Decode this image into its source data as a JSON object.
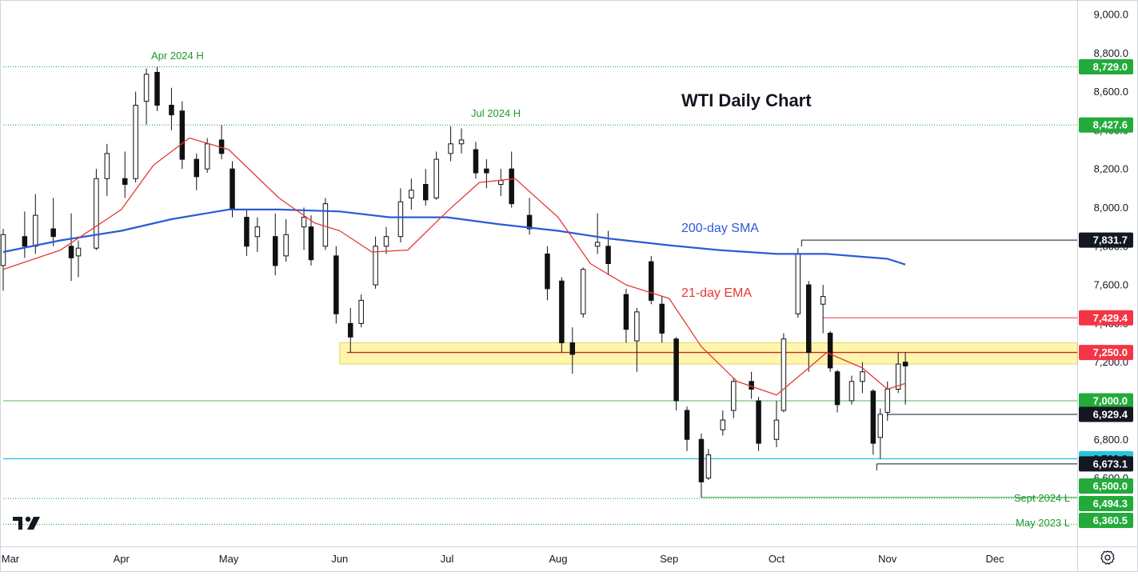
{
  "chart_data": {
    "type": "candlestick",
    "title": "WTI Daily Chart",
    "y_axis": {
      "range": [
        6250,
        9050
      ],
      "ticks": [
        "9,000.0",
        "8,800.0",
        "8,600.0",
        "8,400.0",
        "8,200.0",
        "8,000.0",
        "7,800.0",
        "7,600.0",
        "7,400.0",
        "7,200.0",
        "7,000.0",
        "6,800.0",
        "6,600.0",
        "6,400.0"
      ],
      "tick_values": [
        9000,
        8800,
        8600,
        8400,
        8200,
        8000,
        7800,
        7600,
        7400,
        7200,
        7000,
        6800,
        6600,
        6400
      ]
    },
    "x_axis": {
      "range": [
        "2024-02-28",
        "2024-12-24"
      ],
      "labels": [
        "Mar",
        "Apr",
        "May",
        "Jun",
        "Jul",
        "Aug",
        "Sep",
        "Oct",
        "Nov",
        "Dec"
      ],
      "label_dates": [
        "2024-03-01",
        "2024-04-01",
        "2024-05-01",
        "2024-06-01",
        "2024-07-01",
        "2024-08-01",
        "2024-09-01",
        "2024-10-01",
        "2024-11-01",
        "2024-12-01"
      ]
    },
    "series": [
      {
        "name": "200-day SMA",
        "color": "#2a5bd7",
        "x": [
          "2024-02-28",
          "2024-03-15",
          "2024-04-01",
          "2024-04-15",
          "2024-05-01",
          "2024-05-15",
          "2024-06-01",
          "2024-06-15",
          "2024-07-01",
          "2024-07-15",
          "2024-08-01",
          "2024-08-15",
          "2024-09-01",
          "2024-09-15",
          "2024-10-01",
          "2024-10-15",
          "2024-11-01",
          "2024-11-06"
        ],
        "y": [
          7770,
          7830,
          7880,
          7940,
          7990,
          7990,
          7980,
          7950,
          7950,
          7915,
          7880,
          7840,
          7805,
          7780,
          7760,
          7760,
          7735,
          7705
        ]
      },
      {
        "name": "21-day EMA",
        "color": "#e53935",
        "x": [
          "2024-02-28",
          "2024-03-15",
          "2024-04-01",
          "2024-04-10",
          "2024-04-20",
          "2024-05-01",
          "2024-05-15",
          "2024-05-25",
          "2024-06-01",
          "2024-06-10",
          "2024-06-20",
          "2024-07-01",
          "2024-07-10",
          "2024-07-20",
          "2024-08-01",
          "2024-08-10",
          "2024-08-20",
          "2024-09-01",
          "2024-09-10",
          "2024-09-20",
          "2024-10-01",
          "2024-10-10",
          "2024-10-15",
          "2024-10-25",
          "2024-11-01",
          "2024-11-06"
        ],
        "y": [
          7680,
          7780,
          7990,
          8220,
          8360,
          8300,
          8050,
          7920,
          7880,
          7770,
          7780,
          7980,
          8130,
          8150,
          7950,
          7710,
          7600,
          7530,
          7280,
          7100,
          7030,
          7170,
          7250,
          7170,
          7060,
          7090
        ]
      }
    ],
    "candles": [
      {
        "date": "2024-02-28",
        "open": 7700,
        "high": 7890,
        "low": 7570,
        "close": 7860
      },
      {
        "date": "2024-03-05",
        "open": 7850,
        "high": 7980,
        "low": 7740,
        "close": 7800
      },
      {
        "date": "2024-03-08",
        "open": 7800,
        "high": 8070,
        "low": 7760,
        "close": 7960
      },
      {
        "date": "2024-03-13",
        "open": 7890,
        "high": 8050,
        "low": 7800,
        "close": 7850
      },
      {
        "date": "2024-03-18",
        "open": 7800,
        "high": 7970,
        "low": 7620,
        "close": 7740
      },
      {
        "date": "2024-03-20",
        "open": 7750,
        "high": 7830,
        "low": 7640,
        "close": 7790
      },
      {
        "date": "2024-03-25",
        "open": 7790,
        "high": 8200,
        "low": 7780,
        "close": 8150
      },
      {
        "date": "2024-03-28",
        "open": 8150,
        "high": 8330,
        "low": 8060,
        "close": 8280
      },
      {
        "date": "2024-04-02",
        "open": 8150,
        "high": 8290,
        "low": 8050,
        "close": 8120
      },
      {
        "date": "2024-04-05",
        "open": 8150,
        "high": 8600,
        "low": 8130,
        "close": 8530
      },
      {
        "date": "2024-04-08",
        "open": 8550,
        "high": 8720,
        "low": 8430,
        "close": 8690
      },
      {
        "date": "2024-04-11",
        "open": 8700,
        "high": 8729,
        "low": 8500,
        "close": 8530
      },
      {
        "date": "2024-04-15",
        "open": 8530,
        "high": 8620,
        "low": 8400,
        "close": 8480
      },
      {
        "date": "2024-04-18",
        "open": 8500,
        "high": 8550,
        "low": 8200,
        "close": 8250
      },
      {
        "date": "2024-04-22",
        "open": 8250,
        "high": 8280,
        "low": 8090,
        "close": 8160
      },
      {
        "date": "2024-04-25",
        "open": 8200,
        "high": 8360,
        "low": 8180,
        "close": 8330
      },
      {
        "date": "2024-04-29",
        "open": 8350,
        "high": 8427,
        "low": 8250,
        "close": 8280
      },
      {
        "date": "2024-05-02",
        "open": 8200,
        "high": 8240,
        "low": 7950,
        "close": 7990
      },
      {
        "date": "2024-05-06",
        "open": 7950,
        "high": 7990,
        "low": 7750,
        "close": 7800
      },
      {
        "date": "2024-05-09",
        "open": 7850,
        "high": 7950,
        "low": 7770,
        "close": 7900
      },
      {
        "date": "2024-05-14",
        "open": 7850,
        "high": 7970,
        "low": 7650,
        "close": 7700
      },
      {
        "date": "2024-05-17",
        "open": 7750,
        "high": 7940,
        "low": 7720,
        "close": 7860
      },
      {
        "date": "2024-05-22",
        "open": 7900,
        "high": 8000,
        "low": 7780,
        "close": 7950
      },
      {
        "date": "2024-05-24",
        "open": 7900,
        "high": 7960,
        "low": 7700,
        "close": 7730
      },
      {
        "date": "2024-05-28",
        "open": 7800,
        "high": 8050,
        "low": 7780,
        "close": 8020
      },
      {
        "date": "2024-05-31",
        "open": 7750,
        "high": 7800,
        "low": 7400,
        "close": 7450
      },
      {
        "date": "2024-06-04",
        "open": 7400,
        "high": 7480,
        "low": 7250,
        "close": 7330
      },
      {
        "date": "2024-06-07",
        "open": 7400,
        "high": 7550,
        "low": 7380,
        "close": 7520
      },
      {
        "date": "2024-06-11",
        "open": 7600,
        "high": 7850,
        "low": 7580,
        "close": 7800
      },
      {
        "date": "2024-06-14",
        "open": 7800,
        "high": 7900,
        "low": 7760,
        "close": 7850
      },
      {
        "date": "2024-06-18",
        "open": 7850,
        "high": 8100,
        "low": 7820,
        "close": 8030
      },
      {
        "date": "2024-06-21",
        "open": 8050,
        "high": 8150,
        "low": 7990,
        "close": 8090
      },
      {
        "date": "2024-06-25",
        "open": 8120,
        "high": 8200,
        "low": 8010,
        "close": 8040
      },
      {
        "date": "2024-06-28",
        "open": 8050,
        "high": 8290,
        "low": 8040,
        "close": 8250
      },
      {
        "date": "2024-07-02",
        "open": 8280,
        "high": 8420,
        "low": 8240,
        "close": 8330
      },
      {
        "date": "2024-07-05",
        "open": 8330,
        "high": 8410,
        "low": 8280,
        "close": 8350
      },
      {
        "date": "2024-07-09",
        "open": 8300,
        "high": 8340,
        "low": 8150,
        "close": 8180
      },
      {
        "date": "2024-07-12",
        "open": 8200,
        "high": 8250,
        "low": 8100,
        "close": 8180
      },
      {
        "date": "2024-07-16",
        "open": 8120,
        "high": 8200,
        "low": 8060,
        "close": 8140
      },
      {
        "date": "2024-07-19",
        "open": 8200,
        "high": 8290,
        "low": 8000,
        "close": 8020
      },
      {
        "date": "2024-07-24",
        "open": 7960,
        "high": 8050,
        "low": 7860,
        "close": 7890
      },
      {
        "date": "2024-07-29",
        "open": 7760,
        "high": 7800,
        "low": 7520,
        "close": 7580
      },
      {
        "date": "2024-08-02",
        "open": 7620,
        "high": 7640,
        "low": 7250,
        "close": 7300
      },
      {
        "date": "2024-08-05",
        "open": 7300,
        "high": 7380,
        "low": 7140,
        "close": 7240
      },
      {
        "date": "2024-08-08",
        "open": 7450,
        "high": 7690,
        "low": 7430,
        "close": 7680
      },
      {
        "date": "2024-08-12",
        "open": 7800,
        "high": 7970,
        "low": 7760,
        "close": 7820
      },
      {
        "date": "2024-08-15",
        "open": 7800,
        "high": 7880,
        "low": 7650,
        "close": 7710
      },
      {
        "date": "2024-08-20",
        "open": 7550,
        "high": 7580,
        "low": 7300,
        "close": 7370
      },
      {
        "date": "2024-08-23",
        "open": 7310,
        "high": 7480,
        "low": 7150,
        "close": 7460
      },
      {
        "date": "2024-08-27",
        "open": 7720,
        "high": 7750,
        "low": 7500,
        "close": 7520
      },
      {
        "date": "2024-08-30",
        "open": 7500,
        "high": 7540,
        "low": 7300,
        "close": 7350
      },
      {
        "date": "2024-09-03",
        "open": 7320,
        "high": 7330,
        "low": 6950,
        "close": 7000
      },
      {
        "date": "2024-09-06",
        "open": 6950,
        "high": 6970,
        "low": 6740,
        "close": 6800
      },
      {
        "date": "2024-09-10",
        "open": 6800,
        "high": 6830,
        "low": 6500,
        "close": 6580
      },
      {
        "date": "2024-09-12",
        "open": 6600,
        "high": 6750,
        "low": 6590,
        "close": 6720
      },
      {
        "date": "2024-09-16",
        "open": 6850,
        "high": 6950,
        "low": 6820,
        "close": 6900
      },
      {
        "date": "2024-09-19",
        "open": 6950,
        "high": 7120,
        "low": 6910,
        "close": 7100
      },
      {
        "date": "2024-09-24",
        "open": 7100,
        "high": 7150,
        "low": 7010,
        "close": 7060
      },
      {
        "date": "2024-09-26",
        "open": 7000,
        "high": 7020,
        "low": 6740,
        "close": 6780
      },
      {
        "date": "2024-10-01",
        "open": 6800,
        "high": 7000,
        "low": 6760,
        "close": 6900
      },
      {
        "date": "2024-10-03",
        "open": 6950,
        "high": 7350,
        "low": 6940,
        "close": 7320
      },
      {
        "date": "2024-10-07",
        "open": 7450,
        "high": 7790,
        "low": 7430,
        "close": 7760
      },
      {
        "date": "2024-10-10",
        "open": 7600,
        "high": 7620,
        "low": 7150,
        "close": 7250
      },
      {
        "date": "2024-10-14",
        "open": 7500,
        "high": 7600,
        "low": 7350,
        "close": 7540
      },
      {
        "date": "2024-10-16",
        "open": 7350,
        "high": 7360,
        "low": 7150,
        "close": 7170
      },
      {
        "date": "2024-10-18",
        "open": 7150,
        "high": 7160,
        "low": 6940,
        "close": 6980
      },
      {
        "date": "2024-10-22",
        "open": 7000,
        "high": 7130,
        "low": 6980,
        "close": 7100
      },
      {
        "date": "2024-10-25",
        "open": 7100,
        "high": 7200,
        "low": 7040,
        "close": 7150
      },
      {
        "date": "2024-10-28",
        "open": 7050,
        "high": 7060,
        "low": 6720,
        "close": 6780
      },
      {
        "date": "2024-10-30",
        "open": 6810,
        "high": 6960,
        "low": 6700,
        "close": 6930
      },
      {
        "date": "2024-11-01",
        "open": 6940,
        "high": 7100,
        "low": 6920,
        "close": 7060
      },
      {
        "date": "2024-11-04",
        "open": 7060,
        "high": 7250,
        "low": 7040,
        "close": 7190
      },
      {
        "date": "2024-11-06",
        "open": 7200,
        "high": 7250,
        "low": 6980,
        "close": 7180
      }
    ],
    "price_levels": [
      {
        "value": 8729.0,
        "label": "8,729.0",
        "kind": "green-dotted",
        "annotation": "Apr 2024 H"
      },
      {
        "value": 8427.6,
        "label": "8,427.6",
        "kind": "green-dotted",
        "annotation": "Jul 2024 H"
      },
      {
        "value": 7831.7,
        "label": "7,831.7",
        "kind": "black"
      },
      {
        "value": 7429.4,
        "label": "7,429.4",
        "kind": "red"
      },
      {
        "value": 7250.0,
        "label": "7,250.0",
        "kind": "red-zone"
      },
      {
        "value": 7000.0,
        "label": "7,000.0",
        "kind": "green-solid"
      },
      {
        "value": 6929.4,
        "label": "6,929.4",
        "kind": "black"
      },
      {
        "value": 6700.0,
        "label": "6,700.0",
        "kind": "cyan"
      },
      {
        "value": 6673.1,
        "label": "6,673.1",
        "kind": "black"
      },
      {
        "value": 6500.0,
        "label": "6,500.0",
        "kind": "green-solid"
      },
      {
        "value": 6494.3,
        "label": "6,494.3",
        "kind": "green-dotted",
        "annotation": "Sept 2024 L"
      },
      {
        "value": 6360.5,
        "label": "6,360.5",
        "kind": "green-dotted",
        "annotation": "May 2023 L"
      }
    ],
    "support_zone": {
      "from": 7190,
      "to": 7300,
      "color": "#fff59d"
    },
    "annotations": [
      {
        "text": "200-day SMA",
        "color": "#2a5bd7"
      },
      {
        "text": "21-day EMA",
        "color": "#e53935"
      }
    ],
    "legend": "none",
    "grid": false
  },
  "colors": {
    "candle": "#111111",
    "grid_border": "#d1d4dc",
    "label_green": "#1e9a2e",
    "badge_green": "#22ab3a",
    "badge_red": "#f23645",
    "badge_cyan": "#26c6da",
    "badge_black": "#131722"
  },
  "icons": {
    "settings": "gear-icon",
    "logo": "tradingview-logo-icon"
  }
}
